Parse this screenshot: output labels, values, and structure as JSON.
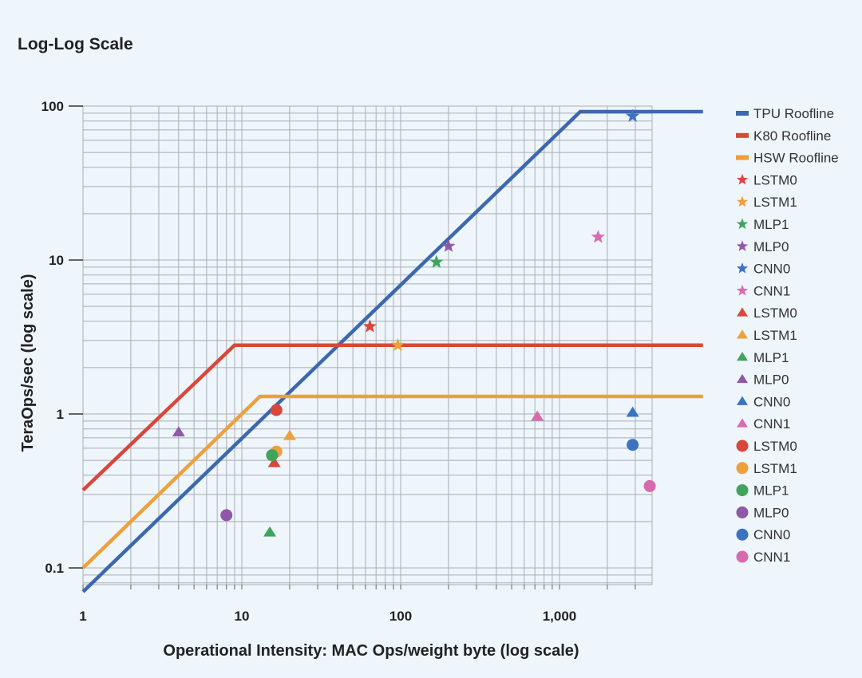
{
  "chart_data": {
    "type": "line",
    "title": "Log-Log Scale",
    "xlabel": "Operational Intensity: MAC Ops/weight byte (log scale)",
    "ylabel": "TeraOps/sec (log scale)",
    "xscale": "log",
    "yscale": "log",
    "xlim": [
      1,
      3500
    ],
    "ylim": [
      0.08,
      100
    ],
    "grid": true,
    "x_ticks": [
      {
        "value": 1,
        "label": "1"
      },
      {
        "value": 10,
        "label": "10"
      },
      {
        "value": 100,
        "label": "100"
      },
      {
        "value": 1000,
        "label": "1,000"
      }
    ],
    "y_ticks": [
      {
        "value": 0.1,
        "label": "0.1"
      },
      {
        "value": 1,
        "label": "1"
      },
      {
        "value": 10,
        "label": "10"
      },
      {
        "value": 100,
        "label": "100"
      }
    ],
    "legend_position": "right",
    "rooflines": [
      {
        "name": "TPU Roofline",
        "color": "#3c68ad",
        "x": [
          1,
          1350,
          8000
        ],
        "y": [
          0.07,
          92,
          92
        ]
      },
      {
        "name": "K80 Roofline",
        "color": "#d9463a",
        "x": [
          1,
          9,
          8000
        ],
        "y": [
          0.32,
          2.8,
          2.8
        ]
      },
      {
        "name": "HSW Roofline",
        "color": "#eda03c",
        "x": [
          1,
          13,
          8000
        ],
        "y": [
          0.1,
          1.3,
          1.3
        ]
      }
    ],
    "series": [
      {
        "name": "LSTM0",
        "platform": "TPU",
        "marker": "star",
        "color": "#d9463a",
        "x": 64,
        "y": 3.7
      },
      {
        "name": "LSTM1",
        "platform": "TPU",
        "marker": "star",
        "color": "#eda03c",
        "x": 96,
        "y": 2.8
      },
      {
        "name": "MLP1",
        "platform": "TPU",
        "marker": "star",
        "color": "#3fa45c",
        "x": 168,
        "y": 9.7
      },
      {
        "name": "MLP0",
        "platform": "TPU",
        "marker": "star",
        "color": "#8f58a8",
        "x": 200,
        "y": 12.3
      },
      {
        "name": "CNN0",
        "platform": "TPU",
        "marker": "star",
        "color": "#3c72c2",
        "x": 2888,
        "y": 86
      },
      {
        "name": "CNN1",
        "platform": "TPU",
        "marker": "star",
        "color": "#d86aae",
        "x": 1750,
        "y": 14.1
      },
      {
        "name": "LSTM0",
        "platform": "K80",
        "marker": "triangle",
        "color": "#d9463a",
        "x": 16,
        "y": 0.48
      },
      {
        "name": "LSTM1",
        "platform": "K80",
        "marker": "triangle",
        "color": "#eda03c",
        "x": 20,
        "y": 0.72
      },
      {
        "name": "MLP1",
        "platform": "K80",
        "marker": "triangle",
        "color": "#3fa45c",
        "x": 15,
        "y": 0.17
      },
      {
        "name": "MLP0",
        "platform": "K80",
        "marker": "triangle",
        "color": "#8f58a8",
        "x": 4,
        "y": 0.76
      },
      {
        "name": "CNN0",
        "platform": "K80",
        "marker": "triangle",
        "color": "#3c72c2",
        "x": 2888,
        "y": 1.02
      },
      {
        "name": "CNN1",
        "platform": "K80",
        "marker": "triangle",
        "color": "#d86aae",
        "x": 725,
        "y": 0.96
      },
      {
        "name": "LSTM0",
        "platform": "HSW",
        "marker": "circle",
        "color": "#d9463a",
        "x": 16.5,
        "y": 1.06
      },
      {
        "name": "LSTM1",
        "platform": "HSW",
        "marker": "circle",
        "color": "#eda03c",
        "x": 16.5,
        "y": 0.57
      },
      {
        "name": "MLP1",
        "platform": "HSW",
        "marker": "circle",
        "color": "#3fa45c",
        "x": 15.5,
        "y": 0.54
      },
      {
        "name": "MLP0",
        "platform": "HSW",
        "marker": "circle",
        "color": "#8f58a8",
        "x": 8,
        "y": 0.22
      },
      {
        "name": "CNN0",
        "platform": "HSW",
        "marker": "circle",
        "color": "#3c72c2",
        "x": 2888,
        "y": 0.63
      },
      {
        "name": "CNN1",
        "platform": "HSW",
        "marker": "circle",
        "color": "#d86aae",
        "x": 3700,
        "y": 0.34
      }
    ]
  }
}
